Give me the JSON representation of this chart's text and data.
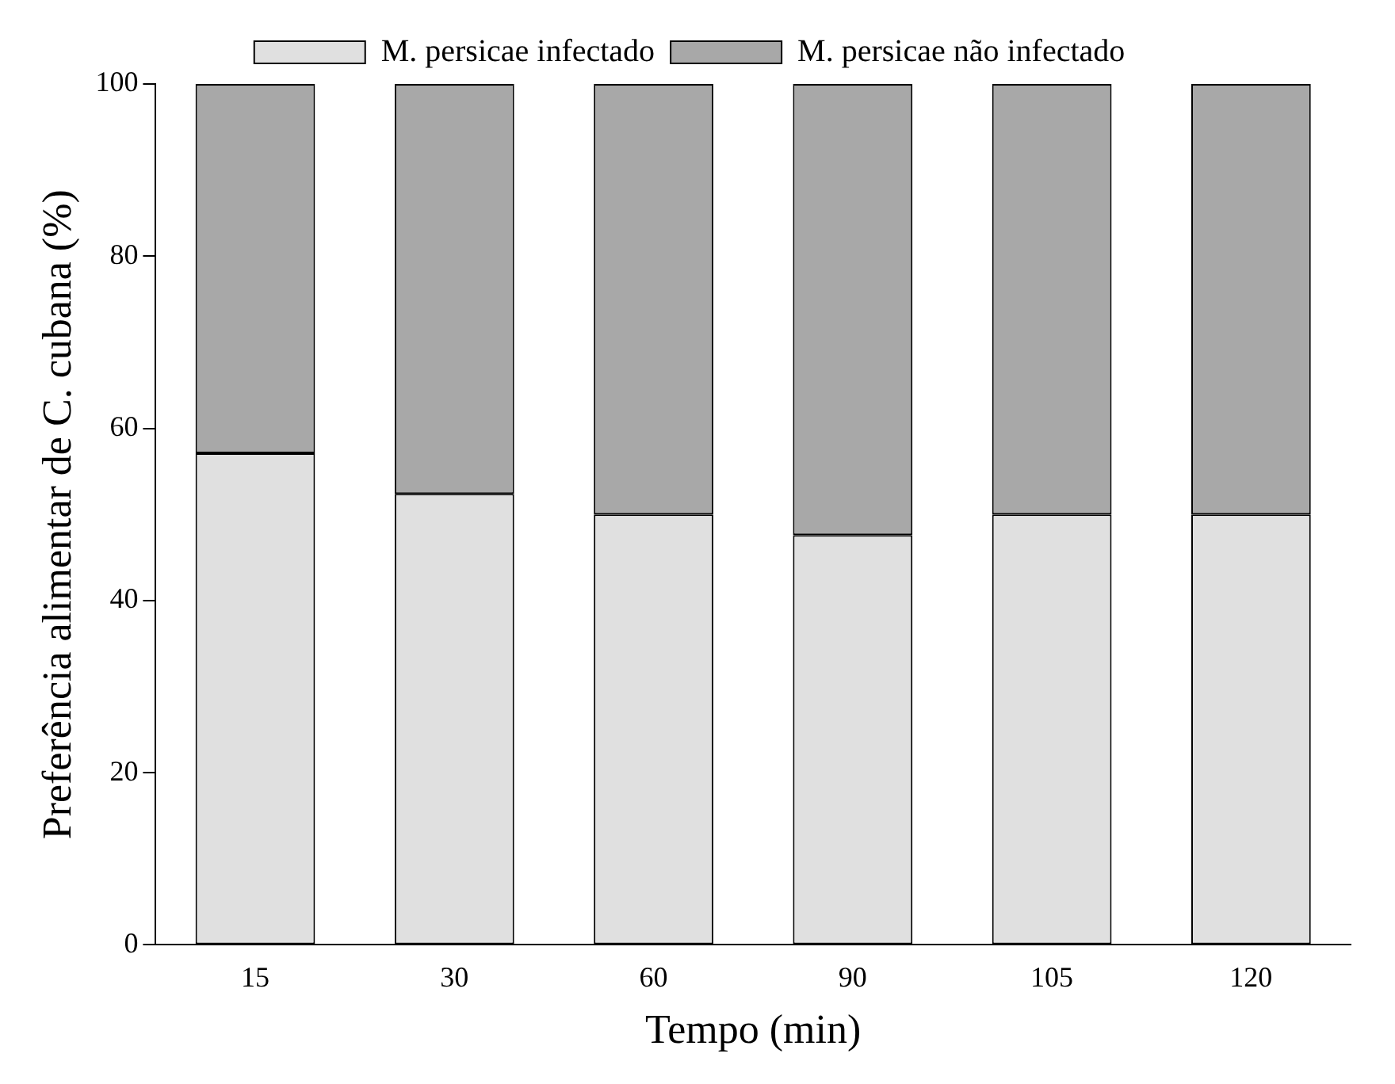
{
  "chart_data": {
    "type": "bar",
    "stacked": true,
    "xlabel": "Tempo (min)",
    "ylabel": "Preferência alimentar de C. cubana (%)",
    "categories": [
      "15",
      "30",
      "60",
      "90",
      "105",
      "120"
    ],
    "series": [
      {
        "name": "M. persicae infectado",
        "color": "#e0e0e0",
        "values": [
          57.1,
          52.4,
          50,
          47.6,
          50,
          50
        ]
      },
      {
        "name": "M. persicae não infectado",
        "color": "#a8a8a8",
        "values": [
          42.9,
          47.6,
          50,
          52.4,
          50,
          50
        ]
      }
    ],
    "ylim": [
      0,
      100
    ],
    "yticks": [
      0,
      20,
      40,
      60,
      80,
      100
    ],
    "grid": false,
    "legend": "top"
  }
}
